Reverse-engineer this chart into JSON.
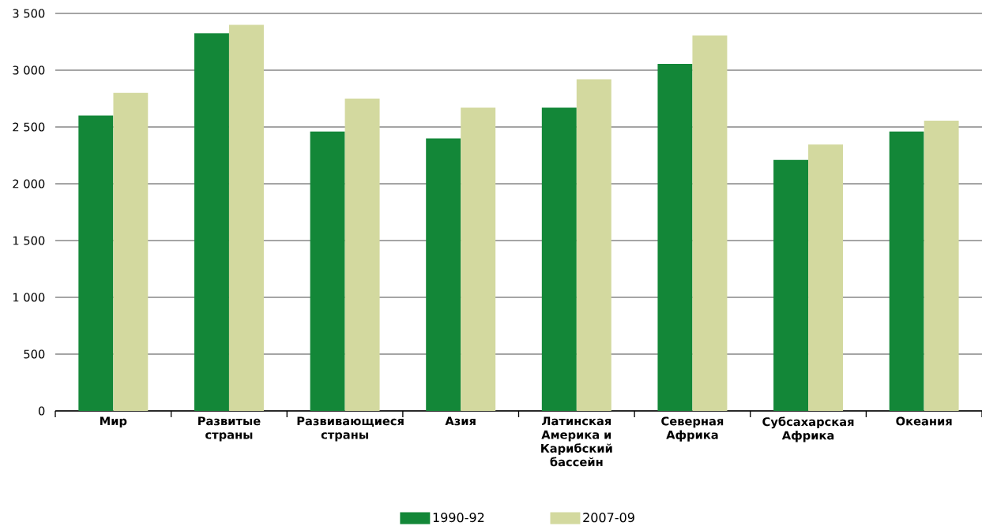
{
  "chart_data": {
    "type": "bar",
    "categories": [
      "Мир",
      "Развитые страны",
      "Развивающиеся страны",
      "Азия",
      "Латинская Америка и Карибский бассейн",
      "Северная Африка",
      "Субсахарская Африка",
      "Океания"
    ],
    "series": [
      {
        "name": "1990-92",
        "color": "#138738",
        "values": [
          2600,
          3325,
          2460,
          2400,
          2670,
          3055,
          2210,
          2460
        ]
      },
      {
        "name": "2007-09",
        "color": "#d3d99f",
        "values": [
          2800,
          3400,
          2750,
          2670,
          2920,
          3305,
          2345,
          2555
        ]
      }
    ],
    "ylim": [
      0,
      3500
    ],
    "yticks": [
      0,
      500,
      {
        "value": 1000,
        "label": "1 000"
      },
      {
        "value": 1500,
        "label": "1 500"
      },
      {
        "value": 2000,
        "label": "2 000"
      },
      {
        "value": 2500,
        "label": "2 500"
      },
      {
        "value": 3000,
        "label": "3 000"
      },
      {
        "value": 3500,
        "label": "3 500"
      }
    ],
    "grid": "y",
    "legend": "bottom"
  }
}
